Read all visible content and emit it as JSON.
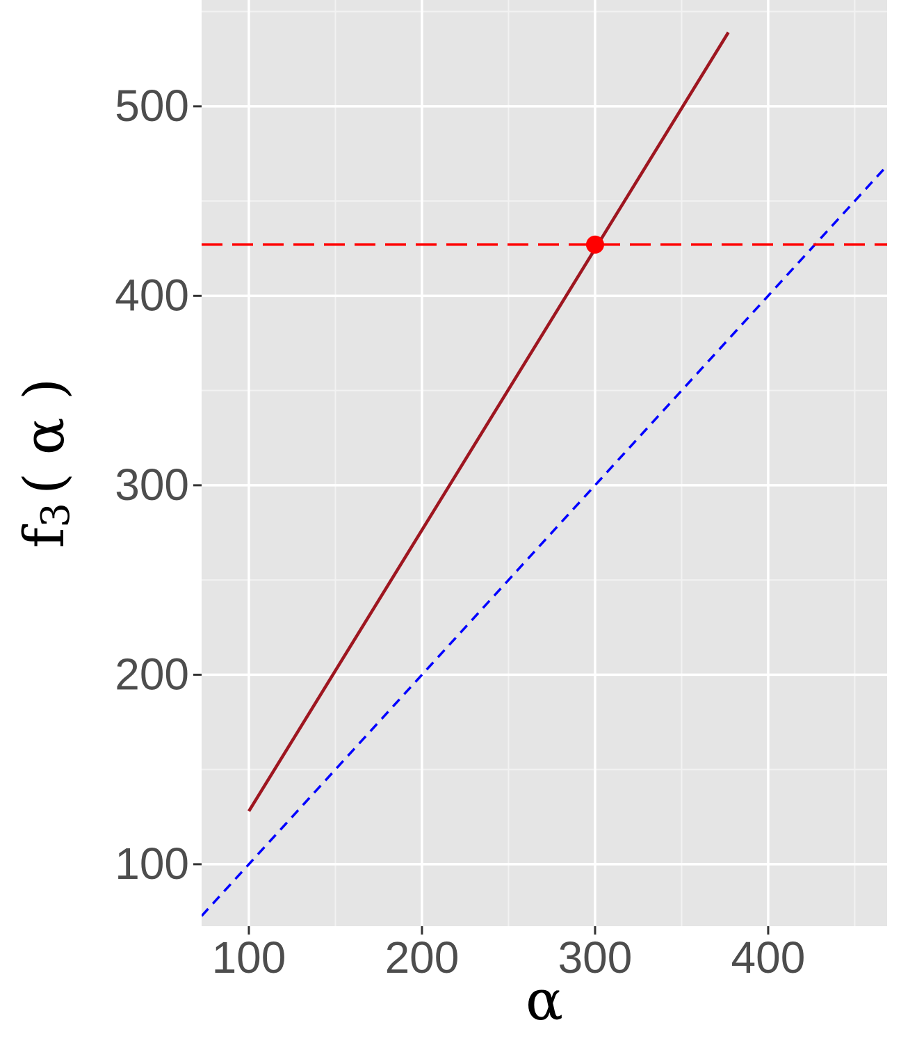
{
  "chart_data": {
    "type": "line",
    "x_label": "α",
    "y_label": {
      "base": "f",
      "sub": "3",
      "rest": "( α )"
    },
    "xlim": [
      72.7,
      468.7
    ],
    "ylim": [
      67.3,
      556.1
    ],
    "xticks": [
      100,
      200,
      300,
      400
    ],
    "yticks": [
      100,
      200,
      300,
      400,
      500
    ],
    "minor_xticks": [
      150,
      250,
      350,
      450
    ],
    "minor_yticks": [
      150,
      250,
      350,
      450,
      550
    ],
    "grid": true,
    "series": [
      {
        "color": "#9e1620",
        "x": [
          100,
          377
        ],
        "values": [
          128,
          539
        ]
      }
    ],
    "points": [
      {
        "color": "#ff0000",
        "x": 300,
        "y": 427
      }
    ],
    "abline": {
      "intercept": 0,
      "slope": 1,
      "color": "#0000ff"
    },
    "hline": {
      "y": 427,
      "color": "#ff0000"
    }
  }
}
